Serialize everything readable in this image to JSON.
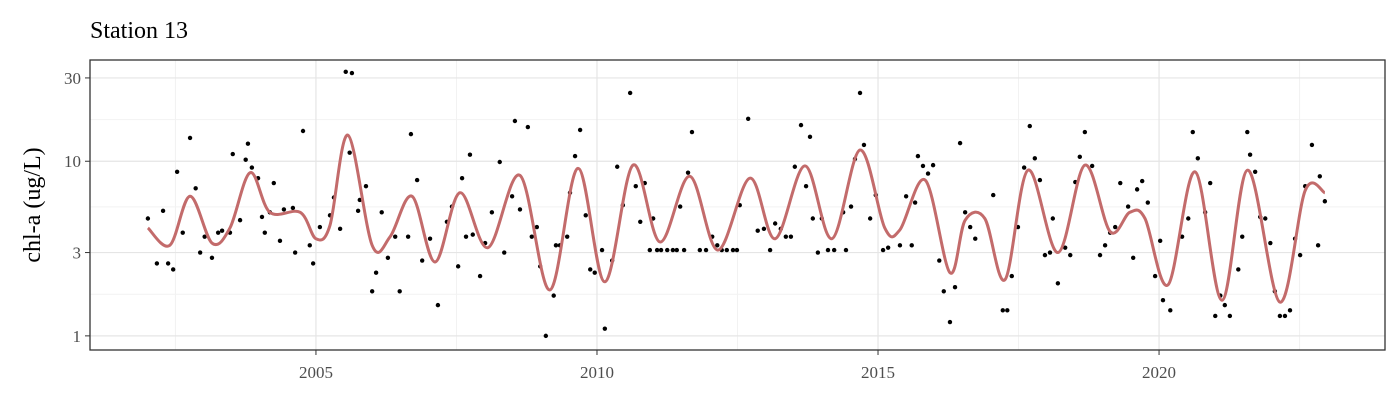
{
  "chart_data": {
    "type": "scatter",
    "title": "Station 13",
    "y_label": "chl-a (ug/L)",
    "xlim": [
      2000.98,
      2024.02
    ],
    "xticks": [
      2005,
      2010,
      2015,
      2020
    ],
    "minor_xticks": [
      2002.5,
      2007.5,
      2012.5,
      2017.5,
      2022.5
    ],
    "ylim": [
      0.83,
      38
    ],
    "yticks": [
      1,
      3,
      10,
      30
    ],
    "minor_yticks": [
      1.73,
      5.48,
      17.32
    ],
    "log_y": true,
    "grid": true,
    "series": [
      {
        "type": "scatter",
        "color": "#000000",
        "x": [
          2002.01,
          2002.17,
          2002.28,
          2002.37,
          2002.46,
          2002.53,
          2002.63,
          2002.76,
          2002.86,
          2002.94,
          2003.02,
          2003.15,
          2003.26,
          2003.33,
          2003.47,
          2003.52,
          2003.65,
          2003.75,
          2003.79,
          2003.86,
          2003.97,
          2004.04,
          2004.09,
          2004.18,
          2004.25,
          2004.36,
          2004.43,
          2004.59,
          2004.63,
          2004.77,
          2004.89,
          2004.95,
          2005.07,
          2005.25,
          2005.32,
          2005.43,
          2005.53,
          2005.6,
          2005.64,
          2005.75,
          2005.78,
          2005.89,
          2006.0,
          2006.07,
          2006.17,
          2006.28,
          2006.41,
          2006.49,
          2006.64,
          2006.69,
          2006.8,
          2006.89,
          2007.03,
          2007.17,
          2007.33,
          2007.42,
          2007.53,
          2007.6,
          2007.67,
          2007.74,
          2007.79,
          2007.92,
          2008.01,
          2008.13,
          2008.27,
          2008.35,
          2008.49,
          2008.54,
          2008.63,
          2008.77,
          2008.84,
          2008.93,
          2008.99,
          2009.09,
          2009.23,
          2009.27,
          2009.34,
          2009.47,
          2009.52,
          2009.61,
          2009.7,
          2009.8,
          2009.88,
          2009.96,
          2010.09,
          2010.14,
          2010.27,
          2010.36,
          2010.46,
          2010.59,
          2010.69,
          2010.77,
          2010.85,
          2010.94,
          2011.0,
          2011.07,
          2011.14,
          2011.25,
          2011.35,
          2011.42,
          2011.48,
          2011.55,
          2011.62,
          2011.69,
          2011.83,
          2011.94,
          2012.05,
          2012.14,
          2012.22,
          2012.31,
          2012.42,
          2012.49,
          2012.54,
          2012.69,
          2012.86,
          2012.97,
          2013.08,
          2013.17,
          2013.27,
          2013.36,
          2013.45,
          2013.52,
          2013.63,
          2013.72,
          2013.79,
          2013.84,
          2013.93,
          2014.0,
          2014.11,
          2014.22,
          2014.38,
          2014.43,
          2014.52,
          2014.59,
          2014.68,
          2014.75,
          2014.86,
          2014.96,
          2015.09,
          2015.18,
          2015.39,
          2015.5,
          2015.6,
          2015.66,
          2015.71,
          2015.8,
          2015.89,
          2015.98,
          2016.09,
          2016.17,
          2016.28,
          2016.37,
          2016.46,
          2016.55,
          2016.64,
          2016.73,
          2017.05,
          2017.22,
          2017.3,
          2017.38,
          2017.49,
          2017.6,
          2017.7,
          2017.79,
          2017.88,
          2017.97,
          2018.06,
          2018.11,
          2018.2,
          2018.33,
          2018.42,
          2018.51,
          2018.59,
          2018.68,
          2018.81,
          2018.95,
          2019.04,
          2019.13,
          2019.22,
          2019.31,
          2019.45,
          2019.54,
          2019.61,
          2019.7,
          2019.8,
          2019.93,
          2020.02,
          2020.07,
          2020.2,
          2020.41,
          2020.52,
          2020.6,
          2020.69,
          2020.82,
          2020.91,
          2021.0,
          2021.09,
          2021.17,
          2021.26,
          2021.41,
          2021.48,
          2021.57,
          2021.62,
          2021.71,
          2021.8,
          2021.89,
          2021.98,
          2022.06,
          2022.15,
          2022.24,
          2022.33,
          2022.42,
          2022.51,
          2022.6,
          2022.72,
          2022.83,
          2022.86,
          2022.95
        ],
        "values": [
          4.7,
          2.6,
          5.2,
          2.6,
          2.4,
          8.7,
          3.9,
          13.6,
          7.0,
          3.0,
          3.7,
          2.8,
          3.9,
          4.0,
          3.9,
          11,
          4.6,
          10.2,
          12.6,
          9.2,
          8.0,
          4.8,
          3.9,
          5.1,
          7.5,
          3.5,
          5.3,
          5.4,
          3.0,
          14.9,
          3.3,
          2.6,
          4.2,
          4.9,
          6.2,
          4.1,
          32.5,
          11.2,
          32,
          5.2,
          6.0,
          7.2,
          1.8,
          2.3,
          5.1,
          2.8,
          3.7,
          1.8,
          3.7,
          14.3,
          7.8,
          2.7,
          3.6,
          1.5,
          4.5,
          5.5,
          2.5,
          8.0,
          3.7,
          10.9,
          3.8,
          2.2,
          3.4,
          5.1,
          9.9,
          3.0,
          6.3,
          17,
          5.3,
          15.7,
          3.7,
          4.2,
          2.5,
          1.0,
          1.7,
          3.3,
          3.3,
          3.7,
          6.6,
          10.7,
          15.1,
          4.9,
          2.4,
          2.3,
          3.1,
          1.1,
          2.7,
          9.3,
          5.6,
          24.6,
          7.2,
          4.5,
          7.5,
          3.1,
          4.7,
          3.1,
          3.1,
          3.1,
          3.1,
          3.1,
          5.5,
          3.1,
          8.6,
          14.7,
          3.1,
          3.1,
          3.7,
          3.3,
          3.1,
          3.1,
          3.1,
          3.1,
          5.6,
          17.5,
          4.0,
          4.1,
          3.1,
          4.4,
          4.1,
          3.7,
          3.7,
          9.3,
          16.1,
          7.2,
          13.8,
          4.7,
          3.0,
          4.7,
          3.1,
          3.1,
          5.1,
          3.1,
          5.5,
          10.3,
          24.6,
          12.4,
          4.7,
          6.4,
          3.1,
          3.2,
          3.3,
          6.3,
          3.3,
          5.8,
          10.7,
          9.4,
          8.5,
          9.5,
          2.7,
          1.8,
          1.2,
          1.9,
          12.7,
          5.1,
          4.2,
          3.6,
          6.4,
          1.4,
          1.4,
          2.2,
          4.2,
          9.2,
          15.9,
          10.4,
          7.8,
          2.9,
          3.0,
          4.7,
          2.0,
          3.2,
          2.9,
          7.6,
          10.6,
          14.7,
          9.4,
          2.9,
          3.3,
          3.9,
          4.2,
          7.5,
          5.5,
          2.8,
          6.9,
          7.7,
          5.8,
          2.2,
          3.5,
          1.6,
          1.4,
          3.7,
          4.7,
          14.7,
          10.4,
          5.1,
          7.5,
          1.3,
          1.7,
          1.5,
          1.3,
          2.4,
          3.7,
          14.7,
          10.9,
          8.7,
          4.8,
          4.7,
          3.4,
          1.8,
          1.3,
          1.3,
          1.4,
          3.6,
          2.9,
          7.2,
          12.4,
          3.3,
          8.2,
          5.9
        ]
      },
      {
        "type": "line",
        "color": "#c36b6b",
        "x": [
          2002.01,
          2002.4,
          2002.76,
          2003.15,
          2003.47,
          2003.83,
          2004.18,
          2004.72,
          2005.0,
          2005.25,
          2005.57,
          2006.0,
          2006.32,
          2006.71,
          2007.12,
          2007.56,
          2008.06,
          2008.63,
          2009.16,
          2009.66,
          2010.14,
          2010.64,
          2011.12,
          2011.65,
          2012.15,
          2012.72,
          2013.17,
          2013.7,
          2014.18,
          2014.68,
          2015.12,
          2015.39,
          2015.84,
          2016.28,
          2016.55,
          2016.9,
          2017.26,
          2017.67,
          2018.2,
          2018.68,
          2019.13,
          2019.48,
          2019.75,
          2020.16,
          2020.64,
          2021.12,
          2021.58,
          2022.15,
          2022.6,
          2022.95
        ],
        "values": [
          4.15,
          3.3,
          6.3,
          3.4,
          4.15,
          8.6,
          5.1,
          5.1,
          3.6,
          4.3,
          14.1,
          3.3,
          3.7,
          6.3,
          2.65,
          6.6,
          3.2,
          8.3,
          1.83,
          9.1,
          2.04,
          9.5,
          3.45,
          8.2,
          3.1,
          8.0,
          3.6,
          9.4,
          3.6,
          11.6,
          4.15,
          4.05,
          7.8,
          2.3,
          4.6,
          4.7,
          2.1,
          8.9,
          3.0,
          9.5,
          3.95,
          5.1,
          4.7,
          1.96,
          8.7,
          1.6,
          8.9,
          1.56,
          6.8,
          6.6
        ]
      }
    ]
  }
}
